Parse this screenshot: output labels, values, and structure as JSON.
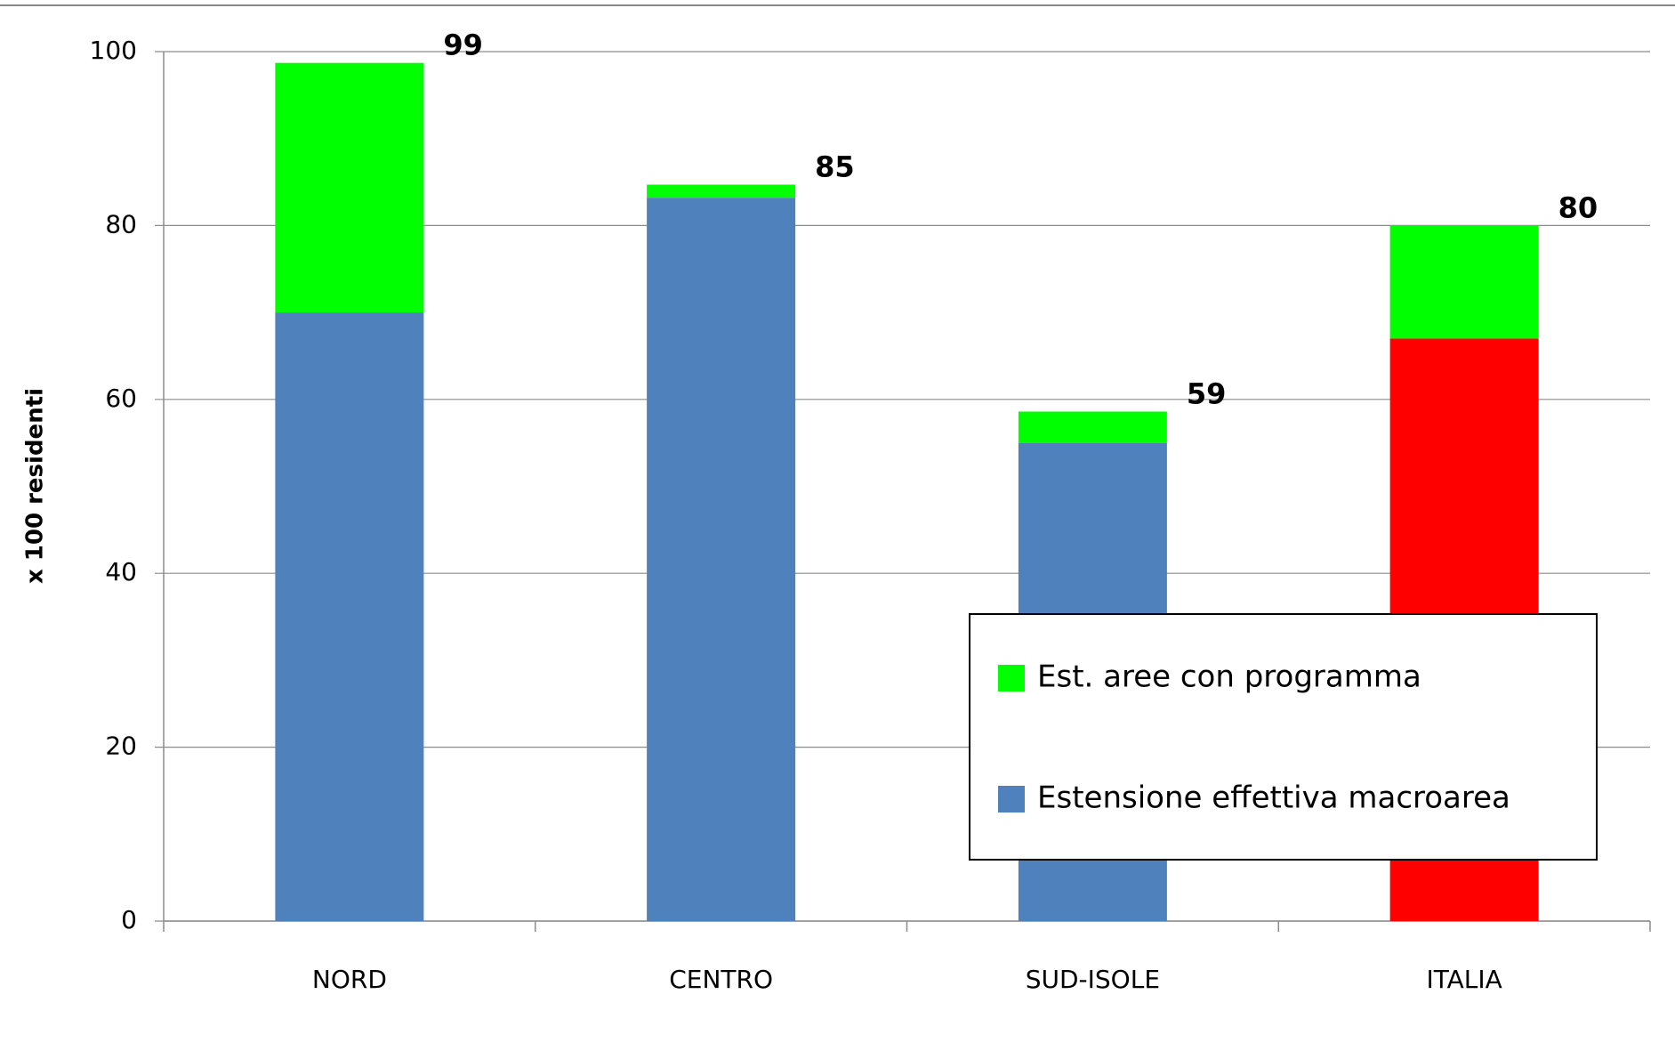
{
  "chart_data": {
    "type": "stacked_bar",
    "y_axis_label": "x 100  residenti",
    "categories": [
      "NORD",
      "CENTRO",
      "SUD-ISOLE",
      "ITALIA"
    ],
    "series": [
      {
        "name": "Estensione effettiva macroarea",
        "color": "#4f81bd",
        "point_colors": [
          "#4f81bd",
          "#4f81bd",
          "#4f81bd",
          "#ff0000"
        ],
        "values": [
          70,
          83.2,
          55,
          67
        ]
      },
      {
        "name": "Est. aree con programma",
        "color": "#00ff00",
        "values": [
          28.7,
          1.5,
          3.6,
          13
        ]
      }
    ],
    "totals": [
      99,
      85,
      59,
      80
    ],
    "ylim": [
      0,
      100
    ],
    "yticks": [
      0,
      20,
      40,
      60,
      80,
      100
    ],
    "grid": true,
    "legend": "lower-right"
  }
}
